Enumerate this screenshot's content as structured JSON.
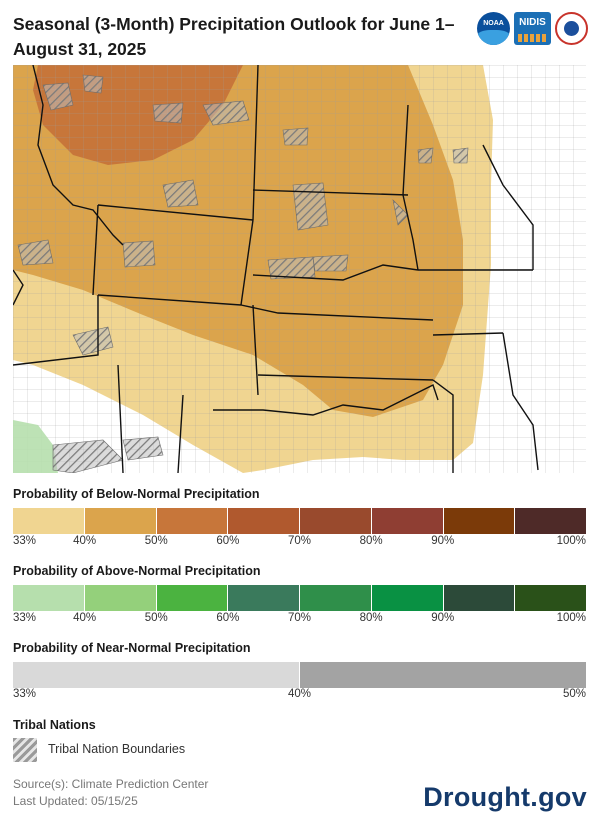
{
  "title": "Seasonal (3-Month) Precipitation Outlook for June 1–August 31, 2025",
  "logos": {
    "noaa": "NOAA",
    "nidis": "NIDIS"
  },
  "legend": {
    "below": {
      "title": "Probability of Below-Normal Precipitation",
      "colors": [
        "#f0d591",
        "#dba44c",
        "#c7763a",
        "#b0592e",
        "#994a2d",
        "#8f3e33",
        "#7b3a09",
        "#4e2a28"
      ],
      "ticks": [
        "33%",
        "40%",
        "50%",
        "60%",
        "70%",
        "80%",
        "90%",
        "100%"
      ]
    },
    "above": {
      "title": "Probability of Above-Normal Precipitation",
      "colors": [
        "#b6dfad",
        "#94d07b",
        "#4bb340",
        "#3a7a5c",
        "#2f8f4a",
        "#099143",
        "#2c4a39",
        "#2a5119"
      ],
      "ticks": [
        "33%",
        "40%",
        "50%",
        "60%",
        "70%",
        "80%",
        "90%",
        "100%"
      ]
    },
    "near": {
      "title": "Probability of Near-Normal Precipitation",
      "colors": [
        "#d9d9d9",
        "#a3a3a3"
      ],
      "ticks": [
        "33%",
        "40%",
        "50%"
      ]
    },
    "tribal": {
      "title": "Tribal Nations",
      "label": "Tribal Nation Boundaries"
    }
  },
  "footer": {
    "source": "Source(s): Climate Prediction Center",
    "updated": "Last Updated: 05/15/25",
    "brand": "Drought.gov"
  }
}
